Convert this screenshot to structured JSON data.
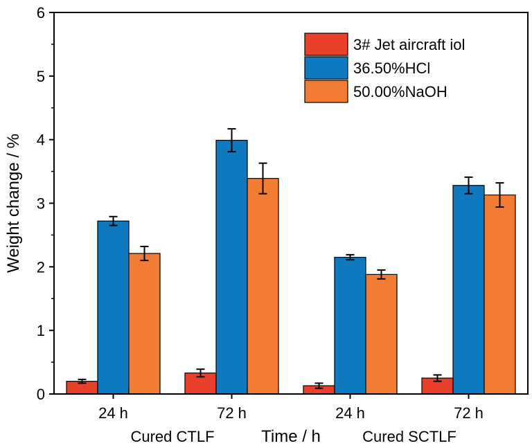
{
  "chart_data": {
    "type": "bar",
    "xlabel": "Time / h",
    "ylabel": "Weight change / %",
    "ylim": [
      0,
      6
    ],
    "yticks": [
      "0",
      "1",
      "2",
      "3",
      "4",
      "5",
      "6"
    ],
    "categories": [
      "24 h",
      "72 h",
      "24 h",
      "72 h"
    ],
    "groups": [
      {
        "label": "Cured CTLF",
        "categories": [
          0,
          1
        ]
      },
      {
        "label": "Cured SCTLF",
        "categories": [
          2,
          3
        ]
      }
    ],
    "legend_position": "top-right",
    "grid": false,
    "series": [
      {
        "name": "3# Jet aircraft iol",
        "color": "#e8402a",
        "values": [
          0.2,
          0.33,
          0.13,
          0.25
        ],
        "errors": [
          0.03,
          0.06,
          0.04,
          0.05
        ]
      },
      {
        "name": "36.50%HCl",
        "color": "#0f79c0",
        "values": [
          2.72,
          3.99,
          2.15,
          3.28
        ],
        "errors": [
          0.07,
          0.18,
          0.04,
          0.13
        ]
      },
      {
        "name": "50.00%NaOH",
        "color": "#f27c33",
        "values": [
          2.21,
          3.39,
          1.88,
          3.13
        ],
        "errors": [
          0.11,
          0.24,
          0.07,
          0.19
        ]
      }
    ]
  }
}
